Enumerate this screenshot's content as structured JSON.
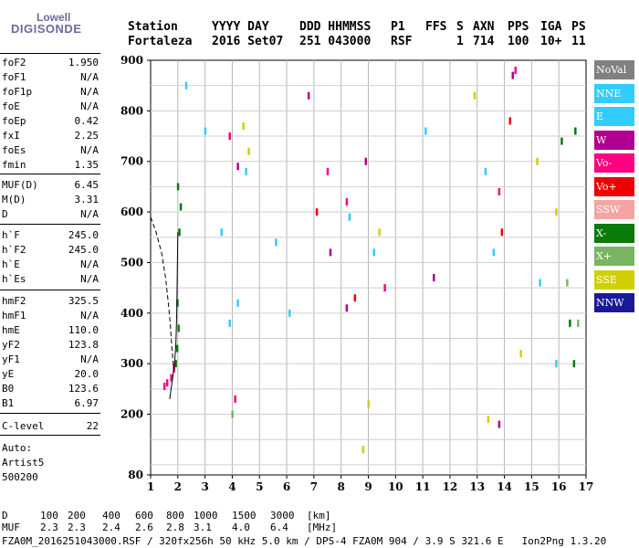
{
  "brand": {
    "line1": "Lowell",
    "line2": "DIGISONDE"
  },
  "header": {
    "labels": [
      "Station",
      "YYYY DAY",
      "DDD HHMMSS",
      "P1",
      "FFS",
      "S",
      "AXN",
      "PPS",
      "IGA",
      "PS"
    ],
    "values": [
      "Fortaleza",
      "2016 Set07",
      "251 043000",
      "RSF",
      "",
      "1",
      "714",
      "100",
      "10+",
      "11"
    ]
  },
  "params_group1": [
    {
      "name": "foF2",
      "value": "1.950"
    },
    {
      "name": "foF1",
      "value": "N/A"
    },
    {
      "name": "foF1p",
      "value": "N/A"
    },
    {
      "name": "foE",
      "value": "N/A"
    },
    {
      "name": "foEp",
      "value": "0.42"
    },
    {
      "name": "fxI",
      "value": "2.25"
    },
    {
      "name": "foEs",
      "value": "N/A"
    },
    {
      "name": "fmin",
      "value": "1.35"
    }
  ],
  "params_group2": [
    {
      "name": "MUF(D)",
      "value": "6.45"
    },
    {
      "name": "M(D)",
      "value": "3.31"
    },
    {
      "name": "D",
      "value": "N/A"
    }
  ],
  "params_group3": [
    {
      "name": "h`F",
      "value": "245.0"
    },
    {
      "name": "h`F2",
      "value": "245.0"
    },
    {
      "name": "h`E",
      "value": "N/A"
    },
    {
      "name": "h`Es",
      "value": "N/A"
    }
  ],
  "params_group4": [
    {
      "name": "hmF2",
      "value": "325.5"
    },
    {
      "name": "hmF1",
      "value": "N/A"
    },
    {
      "name": "hmE",
      "value": "110.0"
    },
    {
      "name": "yF2",
      "value": "123.8"
    },
    {
      "name": "yF1",
      "value": "N/A"
    },
    {
      "name": "yE",
      "value": "20.0"
    },
    {
      "name": "B0",
      "value": "123.6"
    },
    {
      "name": "B1",
      "value": "6.97"
    }
  ],
  "c_level": {
    "name": "C-level",
    "value": "22"
  },
  "auto": {
    "line1": "Auto:",
    "line2": "Artist5",
    "line3": "500200"
  },
  "legend": [
    {
      "label": "NoVal",
      "color": "#808080"
    },
    {
      "label": "NNE",
      "color": "#33ccff"
    },
    {
      "label": "E",
      "color": "#33ccff"
    },
    {
      "label": "W",
      "color": "#b0008f"
    },
    {
      "label": "Vo-",
      "color": "#ff0080"
    },
    {
      "label": "Vo+",
      "color": "#ee0000"
    },
    {
      "label": "SSW",
      "color": "#f5a3a3"
    },
    {
      "label": "X-",
      "color": "#0a7a0a"
    },
    {
      "label": "X+",
      "color": "#7ab661"
    },
    {
      "label": "SSE",
      "color": "#d0d000"
    },
    {
      "label": "NNW",
      "color": "#1a1a99"
    }
  ],
  "footer": {
    "d_label": "D",
    "d_values": [
      "100",
      "200",
      "400",
      "600",
      "800",
      "1000",
      "1500",
      "3000",
      "[km]"
    ],
    "muf_label": "MUF",
    "muf_values": [
      "2.3",
      "2.3",
      "2.4",
      "2.6",
      "2.8",
      "3.1",
      "4.0",
      "6.4",
      "[MHz]"
    ],
    "info": "FZA0M_2016251043000.RSF / 320fx256h 50 kHz 5.0 km / DPS-4 FZA0M 904 / 3.9 S 321.6 E   Ion2Png 1.3.20"
  },
  "chart_data": {
    "type": "scatter",
    "title": "",
    "xlabel": "",
    "ylabel": "",
    "xlim": [
      1,
      17
    ],
    "ylim": [
      80,
      900
    ],
    "x_ticks": [
      "1",
      "2",
      "3",
      "4",
      "5",
      "6",
      "7",
      "8",
      "9",
      "10",
      "11",
      "12",
      "13",
      "14",
      "15",
      "16",
      "17"
    ],
    "y_ticks": [
      "80",
      "200",
      "300",
      "400",
      "500",
      "600",
      "700",
      "800",
      "900"
    ],
    "grid": true,
    "legend_placement": "right",
    "series": [
      {
        "name": "X-",
        "color": "#0a7a0a",
        "points": [
          [
            1.92,
            300
          ],
          [
            1.97,
            330
          ],
          [
            2.02,
            370
          ],
          [
            1.98,
            420
          ],
          [
            2.05,
            560
          ],
          [
            2.1,
            610
          ],
          [
            2.0,
            650
          ],
          [
            16.1,
            740
          ],
          [
            16.6,
            760
          ],
          [
            16.4,
            380
          ],
          [
            16.55,
            300
          ]
        ]
      },
      {
        "name": "Vo-",
        "color": "#ff0080",
        "points": [
          [
            1.5,
            255
          ],
          [
            1.6,
            262
          ],
          [
            1.75,
            272
          ],
          [
            1.85,
            290
          ],
          [
            3.9,
            750
          ],
          [
            7.5,
            680
          ],
          [
            8.2,
            620
          ],
          [
            9.6,
            450
          ],
          [
            13.8,
            640
          ],
          [
            14.4,
            880
          ],
          [
            4.1,
            230
          ]
        ]
      },
      {
        "name": "NNE",
        "color": "#33ccff",
        "points": [
          [
            2.3,
            850
          ],
          [
            3.0,
            760
          ],
          [
            3.6,
            560
          ],
          [
            3.9,
            380
          ],
          [
            4.2,
            420
          ],
          [
            4.5,
            680
          ],
          [
            5.6,
            540
          ],
          [
            6.1,
            400
          ],
          [
            8.3,
            590
          ],
          [
            9.2,
            520
          ],
          [
            11.1,
            760
          ],
          [
            13.3,
            680
          ],
          [
            13.6,
            520
          ],
          [
            15.3,
            460
          ],
          [
            15.9,
            300
          ]
        ]
      },
      {
        "name": "SSE",
        "color": "#d0d000",
        "points": [
          [
            4.4,
            770
          ],
          [
            4.6,
            720
          ],
          [
            8.8,
            130
          ],
          [
            9.0,
            220
          ],
          [
            9.4,
            560
          ],
          [
            12.9,
            830
          ],
          [
            13.4,
            190
          ],
          [
            14.6,
            320
          ],
          [
            15.2,
            700
          ],
          [
            15.9,
            600
          ]
        ]
      },
      {
        "name": "W",
        "color": "#b0008f",
        "points": [
          [
            4.2,
            690
          ],
          [
            6.8,
            830
          ],
          [
            7.6,
            520
          ],
          [
            8.2,
            410
          ],
          [
            8.9,
            700
          ],
          [
            11.4,
            470
          ],
          [
            13.8,
            180
          ],
          [
            14.3,
            870
          ]
        ]
      },
      {
        "name": "X+",
        "color": "#7ab661",
        "points": [
          [
            4.0,
            200
          ],
          [
            16.3,
            460
          ],
          [
            16.7,
            380
          ]
        ]
      },
      {
        "name": "Vo+",
        "color": "#ee0000",
        "points": [
          [
            7.1,
            600
          ],
          [
            8.5,
            430
          ],
          [
            13.9,
            560
          ],
          [
            14.2,
            780
          ]
        ]
      }
    ]
  }
}
